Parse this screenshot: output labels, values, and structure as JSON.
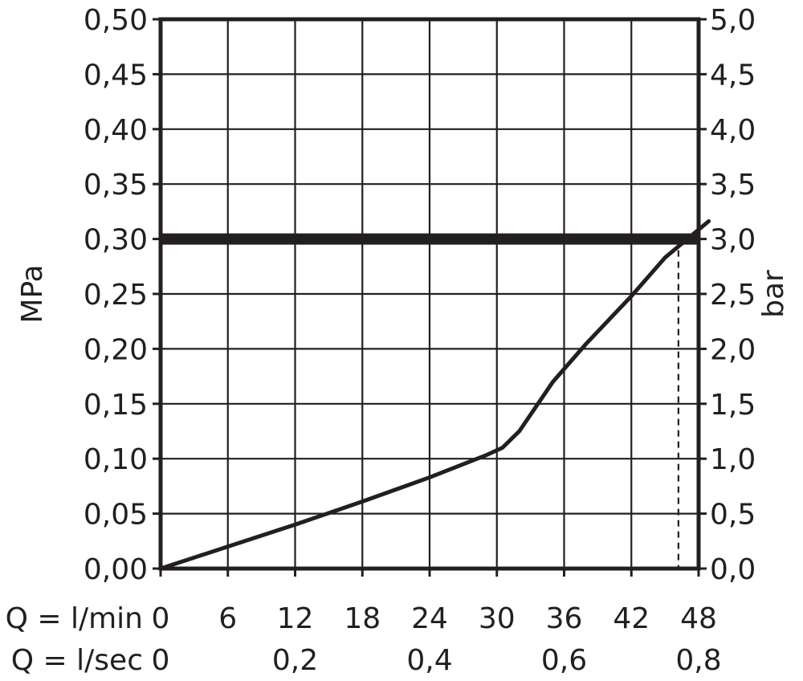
{
  "chart_data": {
    "type": "line",
    "left_axis": {
      "label": "MPa",
      "ticks": [
        "0,00",
        "0,05",
        "0,10",
        "0,15",
        "0,20",
        "0,25",
        "0,30",
        "0,35",
        "0,40",
        "0,45",
        "0,50"
      ],
      "ylim": [
        0,
        0.5
      ]
    },
    "right_axis": {
      "label": "bar",
      "ticks": [
        "0,0",
        "0,5",
        "1,0",
        "1,5",
        "2,0",
        "2,5",
        "3,0",
        "3,5",
        "4,0",
        "4,5",
        "5,0"
      ],
      "ylim": [
        0,
        5
      ]
    },
    "x_axis_lmin": {
      "label": "Q = l/min",
      "ticks": [
        "0",
        "6",
        "12",
        "18",
        "24",
        "30",
        "36",
        "42",
        "48"
      ],
      "xlim": [
        0,
        48
      ]
    },
    "x_axis_lsec": {
      "label": "Q = l/sec",
      "ticks": [
        "0",
        "0,2",
        "0,4",
        "0,6",
        "0,8"
      ],
      "values": [
        0,
        0.2,
        0.4,
        0.6,
        0.8
      ]
    },
    "grid": true,
    "series": [
      {
        "x": [
          0,
          6,
          12,
          18,
          24,
          29,
          30.5,
          32,
          35,
          38,
          42,
          45,
          47
        ],
        "y": [
          0,
          0.02,
          0.04,
          0.061,
          0.083,
          0.103,
          0.11,
          0.125,
          0.17,
          0.205,
          0.248,
          0.283,
          0.3
        ]
      }
    ],
    "reference_line_y": 0.3,
    "reference_marker_x": 46.2
  }
}
